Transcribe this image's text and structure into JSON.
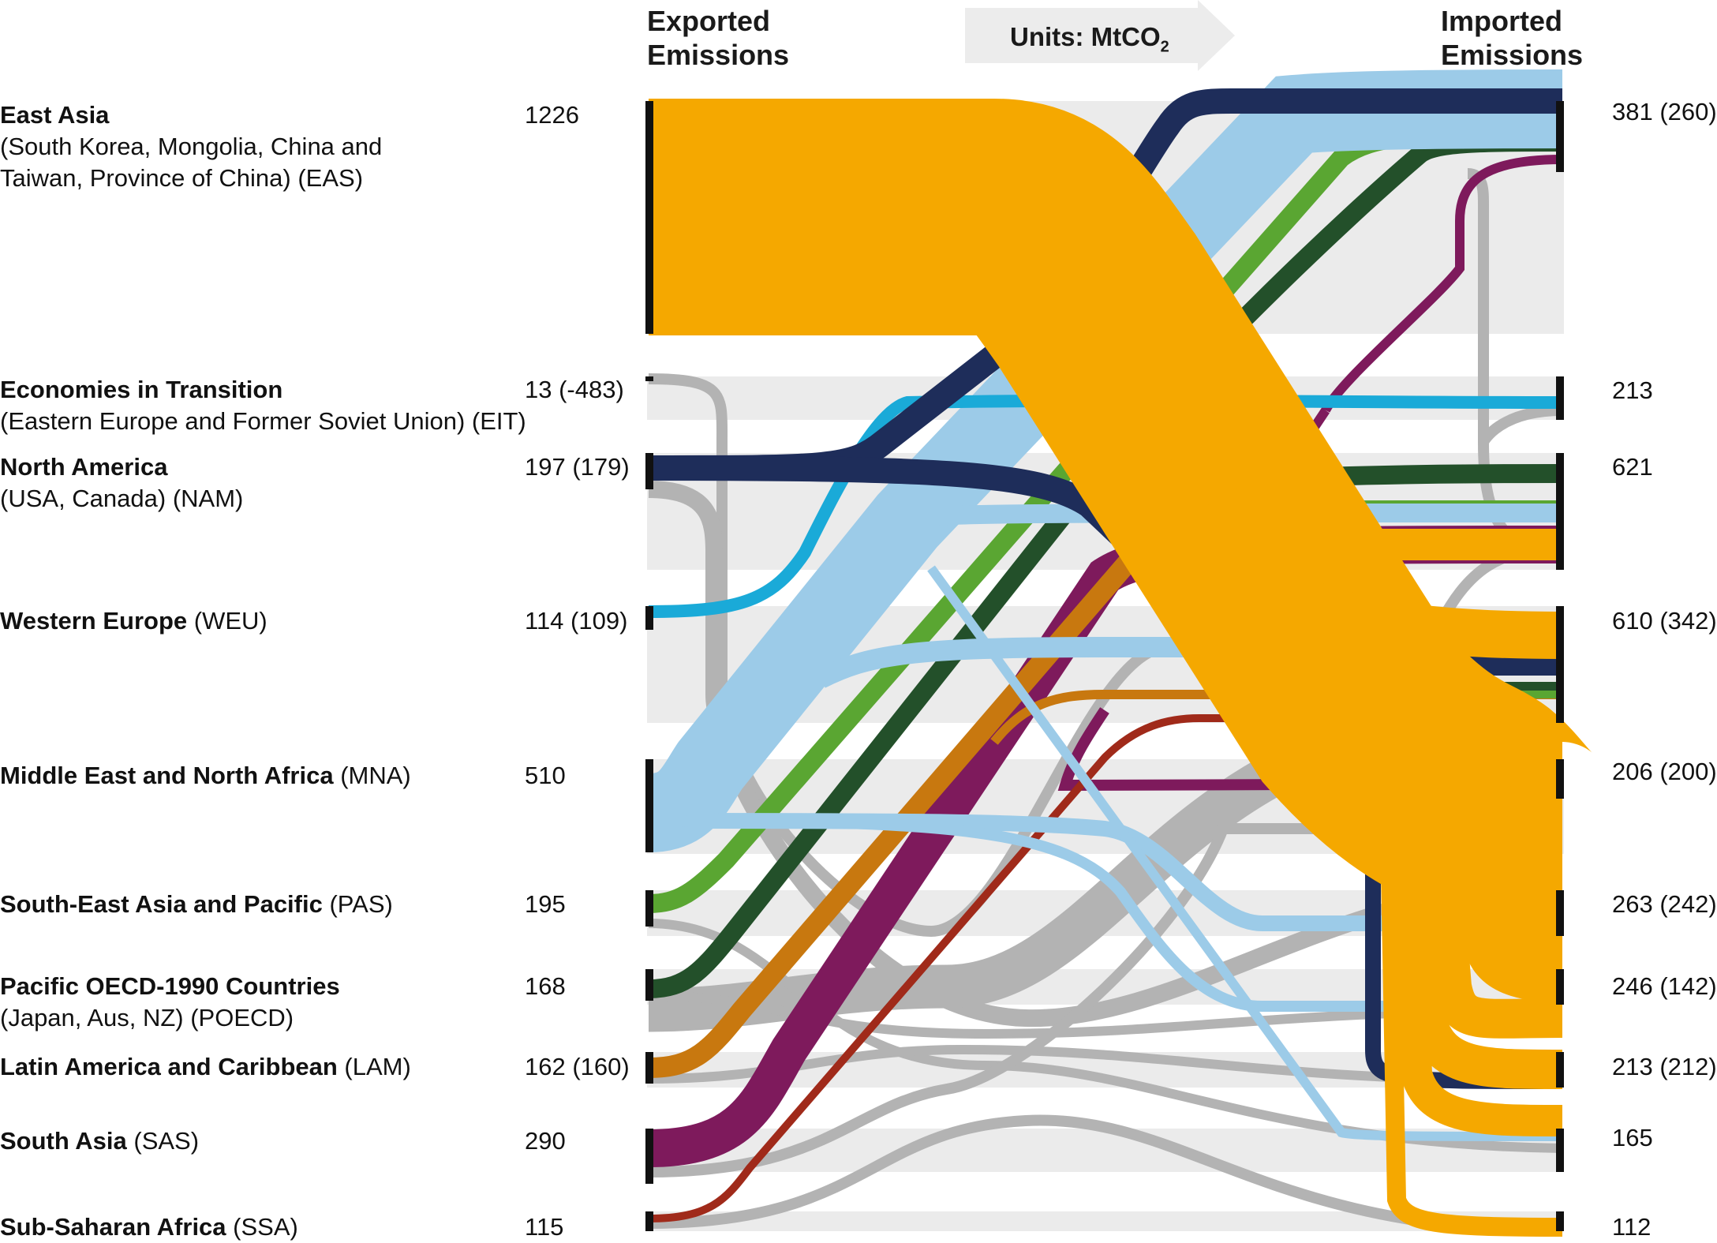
{
  "header": {
    "exported_line1": "Exported",
    "exported_line2": "Emissions",
    "imported_line1": "Imported",
    "imported_line2": "Emissions",
    "units_prefix": "Units: MtCO",
    "units_subscript": "2"
  },
  "regions": [
    {
      "code": "EAS",
      "name": "East Asia",
      "line2": "(South Korea, Mongolia, China and",
      "line3": "Taiwan, Province of China) (EAS)",
      "export": "1226",
      "import": "381 (260)",
      "color": "#f5a800"
    },
    {
      "code": "EIT",
      "name": "Economies in Transition",
      "line2": "(Eastern Europe and Former Soviet Union) (EIT)",
      "export": "13 (-483)",
      "import": "213",
      "color": "#b3b3b3"
    },
    {
      "code": "NAM",
      "name": "North America",
      "line2": "(USA, Canada) (NAM)",
      "export": "197 (179)",
      "import": "621",
      "color": "#1e2d5a"
    },
    {
      "code": "WEU",
      "name": "Western Europe",
      "suffix": " (WEU)",
      "export": "114 (109)",
      "import": "610 (342)",
      "color": "#1aaad8"
    },
    {
      "code": "MNA",
      "name": "Middle East and North Africa",
      "suffix": " (MNA)",
      "export": "510",
      "import": "206 (200)",
      "color": "#9ccbe8"
    },
    {
      "code": "PAS",
      "name": "South-East Asia and Pacific",
      "suffix": " (PAS)",
      "export": "195",
      "import": "263 (242)",
      "color": "#5aa632"
    },
    {
      "code": "POECD",
      "name": "Pacific OECD-1990 Countries",
      "line2": "(Japan, Aus, NZ) (POECD)",
      "export": "168",
      "import": "246 (142)",
      "color": "#23502a"
    },
    {
      "code": "LAM",
      "name": "Latin America and Caribbean",
      "suffix": " (LAM)",
      "export": "162 (160)",
      "import": "213 (212)",
      "color": "#c8780f"
    },
    {
      "code": "SAS",
      "name": "South Asia",
      "suffix": " (SAS)",
      "export": "290",
      "import": "165",
      "color": "#7e1a5c"
    },
    {
      "code": "SSA",
      "name": "Sub-Saharan Africa",
      "suffix": " (SSA)",
      "export": "115",
      "import": "112",
      "color": "#a02a1a"
    }
  ]
}
